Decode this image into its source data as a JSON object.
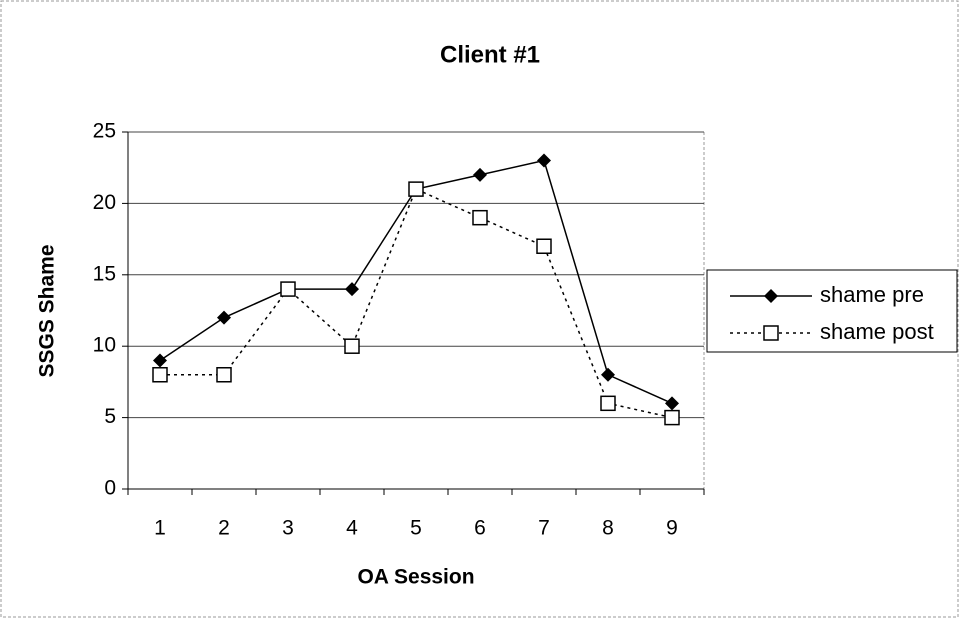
{
  "chart_data": {
    "type": "line",
    "title": "Client #1",
    "x_label": "OA Session",
    "y_label": "SSGS Shame",
    "categories": [
      "1",
      "2",
      "3",
      "4",
      "5",
      "6",
      "7",
      "8",
      "9"
    ],
    "series": [
      {
        "name": "shame pre",
        "color": "#000000",
        "dash": "solid",
        "marker": "diamond",
        "values": [
          9,
          12,
          14,
          14,
          21,
          22,
          23,
          8,
          6
        ]
      },
      {
        "name": "shame post",
        "color": "#000000",
        "dash": "dotted",
        "marker": "square",
        "values": [
          8,
          8,
          14,
          10,
          21,
          19,
          17,
          6,
          5
        ]
      }
    ],
    "ylim": [
      0,
      25
    ],
    "yticks": [
      0,
      5,
      10,
      15,
      20,
      25
    ],
    "grid": true,
    "legend": "right"
  }
}
